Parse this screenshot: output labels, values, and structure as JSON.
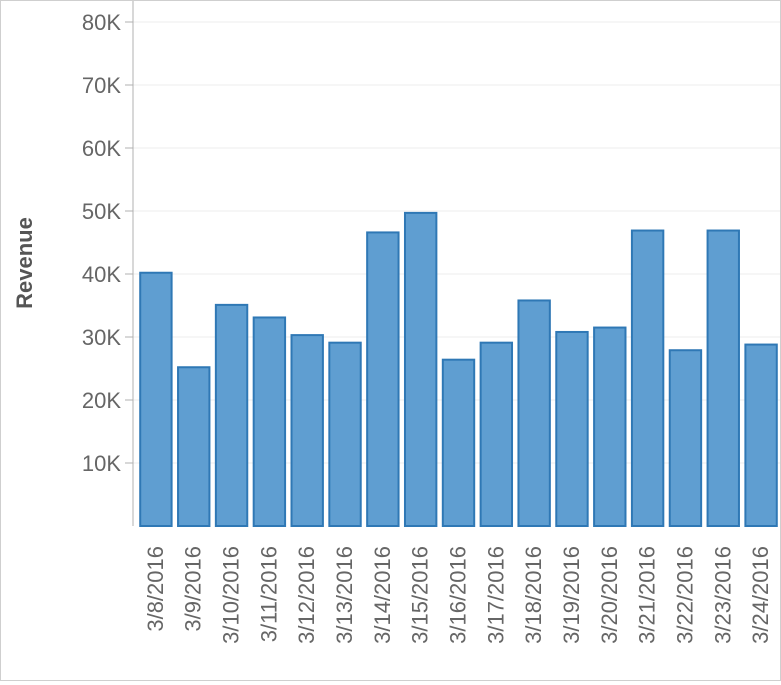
{
  "chart_data": {
    "type": "bar",
    "title": "",
    "xlabel": "",
    "ylabel": "Revenue",
    "ylim": [
      0,
      80000
    ],
    "yticks": [
      10000,
      20000,
      30000,
      40000,
      50000,
      60000,
      70000,
      80000
    ],
    "ytick_labels": [
      "10K",
      "20K",
      "30K",
      "40K",
      "50K",
      "60K",
      "70K",
      "80K"
    ],
    "grid": true,
    "legend": "none",
    "categories": [
      "3/8/2016",
      "3/9/2016",
      "3/10/2016",
      "3/11/2016",
      "3/12/2016",
      "3/13/2016",
      "3/14/2016",
      "3/15/2016",
      "3/16/2016",
      "3/17/2016",
      "3/18/2016",
      "3/19/2016",
      "3/20/2016",
      "3/21/2016",
      "3/22/2016",
      "3/23/2016",
      "3/24/2016"
    ],
    "values": [
      40200,
      25200,
      35100,
      33100,
      30300,
      29100,
      46600,
      49700,
      26400,
      29100,
      35800,
      30800,
      31500,
      46900,
      27900,
      46900,
      28800
    ],
    "colors": {
      "bar_fill": "#5f9ed1",
      "bar_stroke": "#2f78b5",
      "grid": "#ececec",
      "axis": "#b0b0b0"
    }
  }
}
